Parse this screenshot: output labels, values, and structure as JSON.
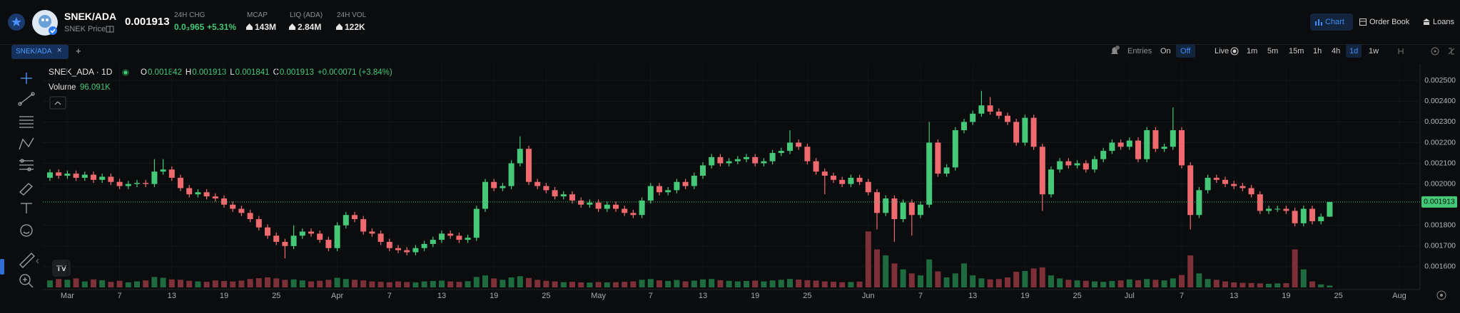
{
  "header": {
    "pair": "SNEK/ADA",
    "subtitle": "SNEK Price",
    "price": "0.001913",
    "stats": [
      {
        "label": "24H CHG",
        "value": "0.0₃965",
        "change": "+5.31%"
      },
      {
        "label": "MCAP",
        "value": "143M"
      },
      {
        "label": "LIQ (ADA)",
        "value": "2.84M"
      },
      {
        "label": "24H VOL",
        "value": "122K"
      }
    ],
    "nav": [
      "Chart",
      "Order Book",
      "Loans"
    ]
  },
  "tabs": [
    "SNEK/ADA"
  ],
  "toolbar": {
    "entries": "Entries",
    "on": "On",
    "off": "Off",
    "live": "Live",
    "intervals": [
      "1m",
      "5m",
      "15m",
      "1h",
      "4h",
      "1d",
      "1w"
    ]
  },
  "chart_data": {
    "type": "candlestick",
    "symbol": "SNEK_ADA · 1D",
    "ohlc_labels": [
      "O",
      "H",
      "L",
      "C"
    ],
    "legend": {
      "change": "+0.000071 (+3.84%)",
      "volume_label": "Volume",
      "volume_value": "96.091K"
    },
    "categories": [
      null,
      null,
      "Mar",
      null,
      null,
      null,
      null,
      null,
      "7",
      null,
      null,
      null,
      null,
      null,
      "13",
      null,
      null,
      null,
      null,
      null,
      "19",
      null,
      null,
      null,
      null,
      null,
      "25",
      null,
      null,
      null,
      null,
      null,
      null,
      "Apr",
      null,
      null,
      null,
      null,
      null,
      "7",
      null,
      null,
      null,
      null,
      null,
      "13",
      null,
      null,
      null,
      null,
      null,
      "19",
      null,
      null,
      null,
      null,
      null,
      "25",
      null,
      null,
      null,
      null,
      null,
      "May",
      null,
      null,
      null,
      null,
      null,
      "7",
      null,
      null,
      null,
      null,
      null,
      "13",
      null,
      null,
      null,
      null,
      null,
      "19",
      null,
      null,
      null,
      null,
      null,
      "25",
      null,
      null,
      null,
      null,
      null,
      null,
      "Jun",
      null,
      null,
      null,
      null,
      null,
      "7",
      null,
      null,
      null,
      null,
      null,
      "13",
      null,
      null,
      null,
      null,
      null,
      "19",
      null,
      null,
      null,
      null,
      null,
      "25",
      null,
      null,
      null,
      null,
      null,
      "Jul",
      null,
      null,
      null,
      null,
      null,
      "7",
      null,
      null,
      null,
      null,
      null,
      "13",
      null,
      null,
      null,
      null,
      null,
      "19",
      null,
      null,
      null,
      null,
      null,
      "25",
      null,
      null,
      null,
      null,
      null,
      null,
      "Aug"
    ],
    "open": [
      0.00203,
      0.002056,
      0.00204,
      0.00205,
      0.00203,
      0.002045,
      0.00202,
      0.002035,
      0.00201,
      0.00199,
      0.002,
      0.002005,
      0.002,
      0.00206,
      0.00207,
      0.00203,
      0.00198,
      0.00195,
      0.00196,
      0.00194,
      0.00193,
      0.0019,
      0.00188,
      0.00186,
      0.00183,
      0.00179,
      0.00175,
      0.00172,
      0.0017,
      0.00175,
      0.00177,
      0.00176,
      0.00173,
      0.00169,
      0.0018,
      0.00185,
      0.00183,
      0.00177,
      0.00176,
      0.00172,
      0.00169,
      0.00168,
      0.00167,
      0.00169,
      0.00171,
      0.00173,
      0.00176,
      0.00175,
      0.00173,
      0.00174,
      0.00188,
      0.00201,
      0.00198,
      0.00199,
      0.0021,
      0.00217,
      0.00201,
      0.00199,
      0.00197,
      0.00194,
      0.00195,
      0.00192,
      0.0019,
      0.00191,
      0.00188,
      0.0019,
      0.00188,
      0.00186,
      0.00185,
      0.00192,
      0.00199,
      0.00196,
      0.00197,
      0.00201,
      0.00199,
      0.00204,
      0.00209,
      0.00213,
      0.0021,
      0.00211,
      0.00212,
      0.00213,
      0.0021,
      0.00211,
      0.00215,
      0.00216,
      0.0022,
      0.00218,
      0.00211,
      0.00206,
      0.00204,
      0.00202,
      0.002,
      0.00203,
      0.00201,
      0.00196,
      0.00186,
      0.00193,
      0.00183,
      0.00191,
      0.00185,
      0.0019,
      0.0022,
      0.00205,
      0.00208,
      0.00226,
      0.0023,
      0.00234,
      0.00238,
      0.00235,
      0.00233,
      0.0023,
      0.0022,
      0.00232,
      0.00218,
      0.00195,
      0.00207,
      0.00211,
      0.00209,
      0.0021,
      0.00207,
      0.00212,
      0.00216,
      0.0022,
      0.00218,
      0.00221,
      0.00212,
      0.00226,
      0.00217,
      0.00218,
      0.00226,
      0.00209,
      0.00185,
      0.00197,
      0.00203,
      0.00202,
      0.002,
      0.00199,
      0.00198,
      0.00195,
      0.00187,
      0.00188,
      0.00188,
      0.00187,
      0.00181,
      0.00188,
      0.00182,
      0.001842,
      null,
      null,
      null,
      null,
      null,
      null,
      null,
      null
    ],
    "high": [
      0.002071,
      0.002071,
      0.002065,
      0.002065,
      0.00206,
      0.00206,
      0.00205,
      0.00205,
      0.002025,
      0.002015,
      0.00202,
      0.00202,
      0.00212,
      0.00212,
      0.002085,
      0.002045,
      0.001995,
      0.001975,
      0.001975,
      0.001955,
      0.001945,
      0.001915,
      0.001895,
      0.001875,
      0.001845,
      0.001805,
      0.001765,
      0.001735,
      0.0018,
      0.001785,
      0.001785,
      0.001775,
      0.001745,
      0.001815,
      0.001865,
      0.001865,
      0.001845,
      0.001785,
      0.001775,
      0.001735,
      0.001705,
      0.001695,
      0.001705,
      0.001725,
      0.001745,
      0.001775,
      0.001775,
      0.001765,
      0.001755,
      0.001895,
      0.002025,
      0.002025,
      0.002005,
      0.002115,
      0.00223,
      0.002185,
      0.002025,
      0.002005,
      0.001985,
      0.001965,
      0.001965,
      0.001935,
      0.001925,
      0.001925,
      0.001915,
      0.001915,
      0.001895,
      0.001875,
      0.001935,
      0.002005,
      0.002005,
      0.001985,
      0.002025,
      0.002025,
      0.002055,
      0.002105,
      0.002145,
      0.002145,
      0.002125,
      0.002135,
      0.002145,
      0.002145,
      0.002125,
      0.002165,
      0.002175,
      0.00226,
      0.002215,
      0.002195,
      0.002125,
      0.002075,
      0.002055,
      0.002035,
      0.002045,
      0.002045,
      0.002025,
      0.001975,
      0.001945,
      0.001945,
      0.001925,
      0.001925,
      0.001915,
      0.0023,
      0.002215,
      0.002095,
      0.002275,
      0.002315,
      0.002355,
      0.00245,
      0.00242,
      0.002365,
      0.002345,
      0.002315,
      0.002335,
      0.002335,
      0.002195,
      0.002085,
      0.002125,
      0.002125,
      0.002115,
      0.002115,
      0.002135,
      0.002175,
      0.002215,
      0.002215,
      0.002225,
      0.002225,
      0.002275,
      0.002275,
      0.002195,
      0.00237,
      0.002275,
      0.002105,
      0.001985,
      0.002045,
      0.002045,
      0.002035,
      0.002015,
      0.002005,
      0.001995,
      0.001965,
      0.001895,
      0.001895,
      0.001895,
      0.001885,
      0.001895,
      0.001895,
      0.001857,
      0.001913,
      null,
      null,
      null,
      null,
      null,
      null,
      null,
      null
    ],
    "low": [
      0.002015,
      0.002025,
      0.002025,
      0.002015,
      0.002015,
      0.002005,
      0.002005,
      0.001995,
      0.001975,
      0.001975,
      0.001985,
      0.001985,
      0.001985,
      0.002045,
      0.002015,
      0.001965,
      0.001935,
      0.001935,
      0.001925,
      0.001915,
      0.001885,
      0.001865,
      0.001845,
      0.001815,
      0.001775,
      0.001735,
      0.001705,
      0.00164,
      0.001685,
      0.001735,
      0.001745,
      0.001715,
      0.001675,
      0.001675,
      0.001785,
      0.001815,
      0.001755,
      0.001745,
      0.001705,
      0.001675,
      0.001665,
      0.001655,
      0.001655,
      0.001675,
      0.001695,
      0.001715,
      0.001735,
      0.001715,
      0.001715,
      0.001725,
      0.001865,
      0.001965,
      0.001965,
      0.001975,
      0.002085,
      0.001995,
      0.001975,
      0.001955,
      0.001925,
      0.001925,
      0.001905,
      0.001885,
      0.001885,
      0.001865,
      0.001865,
      0.001865,
      0.001845,
      0.001835,
      0.001835,
      0.001905,
      0.001945,
      0.001945,
      0.001955,
      0.001975,
      0.001975,
      0.002025,
      0.002075,
      0.002085,
      0.002085,
      0.002095,
      0.002105,
      0.002085,
      0.002085,
      0.002095,
      0.002135,
      0.002145,
      0.002165,
      0.002095,
      0.002045,
      0.00195,
      0.002005,
      0.001985,
      0.001985,
      0.001995,
      0.001945,
      0.00178,
      0.001845,
      0.00172,
      0.001815,
      0.00175,
      0.001835,
      0.001885,
      0.002035,
      0.002035,
      0.002065,
      0.002245,
      0.002285,
      0.002325,
      0.002335,
      0.002315,
      0.002285,
      0.002185,
      0.002185,
      0.002165,
      0.00187,
      0.001935,
      0.002055,
      0.002075,
      0.002075,
      0.002055,
      0.002055,
      0.002105,
      0.002145,
      0.002165,
      0.002165,
      0.002105,
      0.002105,
      0.002155,
      0.002155,
      0.002165,
      0.002075,
      0.00178,
      0.001835,
      0.001955,
      0.002005,
      0.001985,
      0.001975,
      0.001965,
      0.001935,
      0.001855,
      0.001855,
      0.001865,
      0.001855,
      0.001795,
      0.001795,
      0.001805,
      0.001805,
      0.001841,
      null,
      null,
      null,
      null,
      null,
      null,
      null,
      null
    ],
    "close": [
      0.002056,
      0.00204,
      0.00205,
      0.00203,
      0.002045,
      0.00202,
      0.002035,
      0.00201,
      0.00199,
      0.002,
      0.002005,
      0.002,
      0.00206,
      0.00207,
      0.00203,
      0.00198,
      0.00195,
      0.00196,
      0.00194,
      0.00193,
      0.0019,
      0.00188,
      0.00186,
      0.00183,
      0.00179,
      0.00175,
      0.00172,
      0.0017,
      0.00175,
      0.00177,
      0.00176,
      0.00173,
      0.00169,
      0.0018,
      0.00185,
      0.00183,
      0.00177,
      0.00176,
      0.00172,
      0.00169,
      0.00168,
      0.00167,
      0.00169,
      0.00171,
      0.00173,
      0.00176,
      0.00175,
      0.00173,
      0.00174,
      0.00188,
      0.00201,
      0.00198,
      0.00199,
      0.0021,
      0.00217,
      0.00201,
      0.00199,
      0.00197,
      0.00194,
      0.00195,
      0.00192,
      0.0019,
      0.00191,
      0.00188,
      0.0019,
      0.00188,
      0.00186,
      0.00185,
      0.00192,
      0.00199,
      0.00196,
      0.00197,
      0.00201,
      0.00199,
      0.00204,
      0.00209,
      0.00213,
      0.0021,
      0.00211,
      0.00212,
      0.00213,
      0.0021,
      0.00211,
      0.00215,
      0.00216,
      0.0022,
      0.00218,
      0.00211,
      0.00206,
      0.00204,
      0.00202,
      0.002,
      0.00203,
      0.00201,
      0.00196,
      0.00186,
      0.00193,
      0.00183,
      0.00191,
      0.00185,
      0.0019,
      0.0022,
      0.00205,
      0.00208,
      0.00226,
      0.0023,
      0.00234,
      0.00238,
      0.00235,
      0.00233,
      0.0023,
      0.0022,
      0.00232,
      0.00218,
      0.00195,
      0.00207,
      0.00211,
      0.00209,
      0.0021,
      0.00207,
      0.00212,
      0.00216,
      0.0022,
      0.00218,
      0.00221,
      0.00212,
      0.00226,
      0.00217,
      0.00218,
      0.00226,
      0.00209,
      0.00185,
      0.00197,
      0.00203,
      0.00202,
      0.002,
      0.00199,
      0.00198,
      0.00195,
      0.00187,
      0.00188,
      0.00188,
      0.00187,
      0.00181,
      0.00188,
      0.00182,
      0.001842,
      0.001913,
      null,
      null,
      null,
      null,
      null,
      null,
      null,
      null
    ],
    "volume": [
      350000,
      420000,
      380000,
      450000,
      300000,
      400000,
      360000,
      280000,
      330000,
      250000,
      300000,
      350000,
      520000,
      480000,
      400000,
      380000,
      330000,
      300000,
      280000,
      350000,
      320000,
      300000,
      340000,
      420000,
      460000,
      500000,
      450000,
      380000,
      400000,
      350000,
      300000,
      330000,
      380000,
      480000,
      420000,
      380000,
      350000,
      300000,
      280000,
      260000,
      300000,
      270000,
      250000,
      300000,
      320000,
      340000,
      300000,
      280000,
      310000,
      520000,
      600000,
      450000,
      380000,
      500000,
      560000,
      470000,
      380000,
      330000,
      300000,
      260000,
      280000,
      250000,
      240000,
      270000,
      250000,
      260000,
      280000,
      300000,
      380000,
      420000,
      350000,
      320000,
      370000,
      300000,
      340000,
      400000,
      420000,
      360000,
      330000,
      300000,
      320000,
      340000,
      300000,
      350000,
      380000,
      420000,
      390000,
      360000,
      340000,
      300000,
      280000,
      260000,
      270000,
      290000,
      2800000,
      1900000,
      1600000,
      1200000,
      900000,
      700000,
      600000,
      1400000,
      800000,
      500000,
      700000,
      1200000,
      600000,
      450000,
      400000,
      420000,
      500000,
      780000,
      820000,
      950000,
      1000000,
      600000,
      450000,
      380000,
      350000,
      330000,
      300000,
      280000,
      320000,
      350000,
      400000,
      360000,
      420000,
      380000,
      350000,
      450000,
      620000,
      1600000,
      700000,
      420000,
      380000,
      300000,
      250000,
      230000,
      220000,
      200000,
      180000,
      200000,
      210000,
      1900000,
      900000,
      300000,
      150000,
      96091,
      null,
      null,
      null,
      null,
      null,
      null,
      null,
      null
    ],
    "up_color": "#45c979",
    "down_color": "#ef6a6f",
    "volume_up_color": "#1d6b3e",
    "volume_down_color": "#7d3037",
    "ylim": [
      0.0015,
      0.00258
    ],
    "yticks": [
      {
        "value": 0.0025,
        "label": "0.002500"
      },
      {
        "value": 0.0024,
        "label": "0.002400"
      },
      {
        "value": 0.0023,
        "label": "0.002300"
      },
      {
        "value": 0.0022,
        "label": "0.002200"
      },
      {
        "value": 0.0021,
        "label": "0.002100"
      },
      {
        "value": 0.002,
        "label": "0.002000"
      },
      {
        "value": 0.0018,
        "label": "0.001800"
      },
      {
        "value": 0.0017,
        "label": "0.001700"
      },
      {
        "value": 0.0016,
        "label": "0.001600"
      }
    ],
    "grid": true
  }
}
